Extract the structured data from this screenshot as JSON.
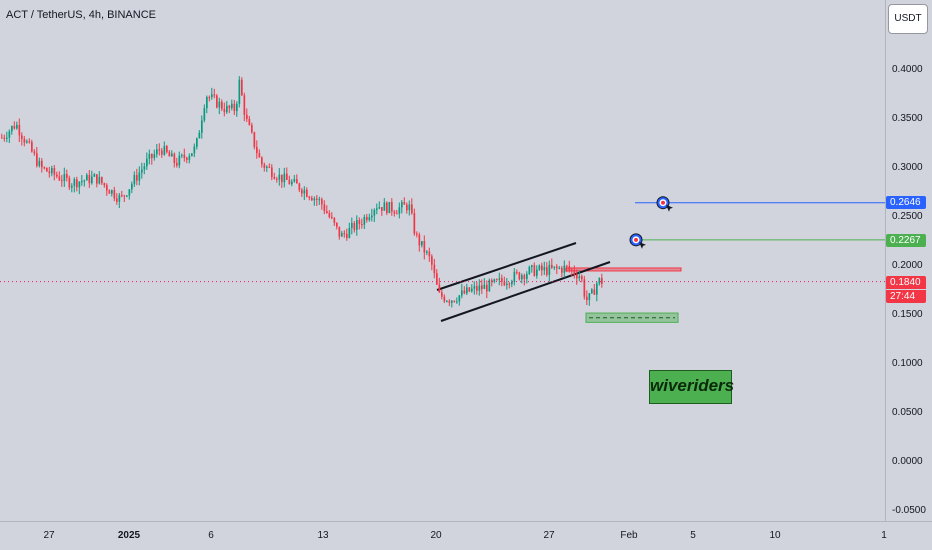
{
  "header": {
    "title": "ACT / TetherUS, 4h, BINANCE",
    "unit": "USDT"
  },
  "watermark": "wiveriders",
  "price_tags": {
    "target_2": "0.2646",
    "target_1": "0.2267",
    "current": "0.1840",
    "countdown": "27:44"
  },
  "chart_data": {
    "type": "candlestick",
    "title": "ACT / TetherUS, 4h, BINANCE",
    "ylim": [
      -0.055,
      0.455
    ],
    "y_ticks": [
      "0.4000",
      "0.3500",
      "0.3000",
      "0.2500",
      "0.2000",
      "0.1500",
      "0.1000",
      "0.0500",
      "0.0000",
      "-0.0500"
    ],
    "x_ticks": [
      "27",
      "2025",
      "6",
      "13",
      "20",
      "27",
      "Feb",
      "5",
      "10",
      "1"
    ],
    "path": [
      [
        0,
        0.33
      ],
      [
        15,
        0.345
      ],
      [
        40,
        0.3
      ],
      [
        70,
        0.285
      ],
      [
        95,
        0.29
      ],
      [
        120,
        0.268
      ],
      [
        145,
        0.305
      ],
      [
        160,
        0.32
      ],
      [
        175,
        0.305
      ],
      [
        195,
        0.32
      ],
      [
        205,
        0.375
      ],
      [
        225,
        0.36
      ],
      [
        235,
        0.36
      ],
      [
        238,
        0.39
      ],
      [
        245,
        0.35
      ],
      [
        260,
        0.305
      ],
      [
        280,
        0.29
      ],
      [
        300,
        0.28
      ],
      [
        320,
        0.265
      ],
      [
        340,
        0.23
      ],
      [
        360,
        0.245
      ],
      [
        375,
        0.262
      ],
      [
        395,
        0.258
      ],
      [
        408,
        0.262
      ],
      [
        415,
        0.23
      ],
      [
        430,
        0.205
      ],
      [
        438,
        0.17
      ],
      [
        450,
        0.166
      ],
      [
        470,
        0.175
      ],
      [
        490,
        0.18
      ],
      [
        510,
        0.188
      ],
      [
        530,
        0.195
      ],
      [
        550,
        0.196
      ],
      [
        565,
        0.198
      ],
      [
        580,
        0.19
      ],
      [
        585,
        0.165
      ],
      [
        590,
        0.168
      ],
      [
        597,
        0.185
      ],
      [
        602,
        0.184
      ]
    ],
    "levels": [
      {
        "label": "0.2646",
        "value": 0.2646,
        "color": "#2962ff"
      },
      {
        "label": "0.2267",
        "value": 0.2267,
        "color": "#4caf50"
      },
      {
        "label": "0.1840",
        "value": 0.184,
        "color": "#e91e63"
      }
    ],
    "zones": [
      {
        "name": "resistance",
        "from": 0.195,
        "to": 0.198,
        "color": "#f23645"
      },
      {
        "name": "support",
        "from": 0.1425,
        "to": 0.152,
        "color": "#4caf50"
      }
    ],
    "colors": {
      "up": "#089981",
      "down": "#f23645",
      "bg": "#d1d4dc",
      "accent": "#2962ff"
    }
  }
}
